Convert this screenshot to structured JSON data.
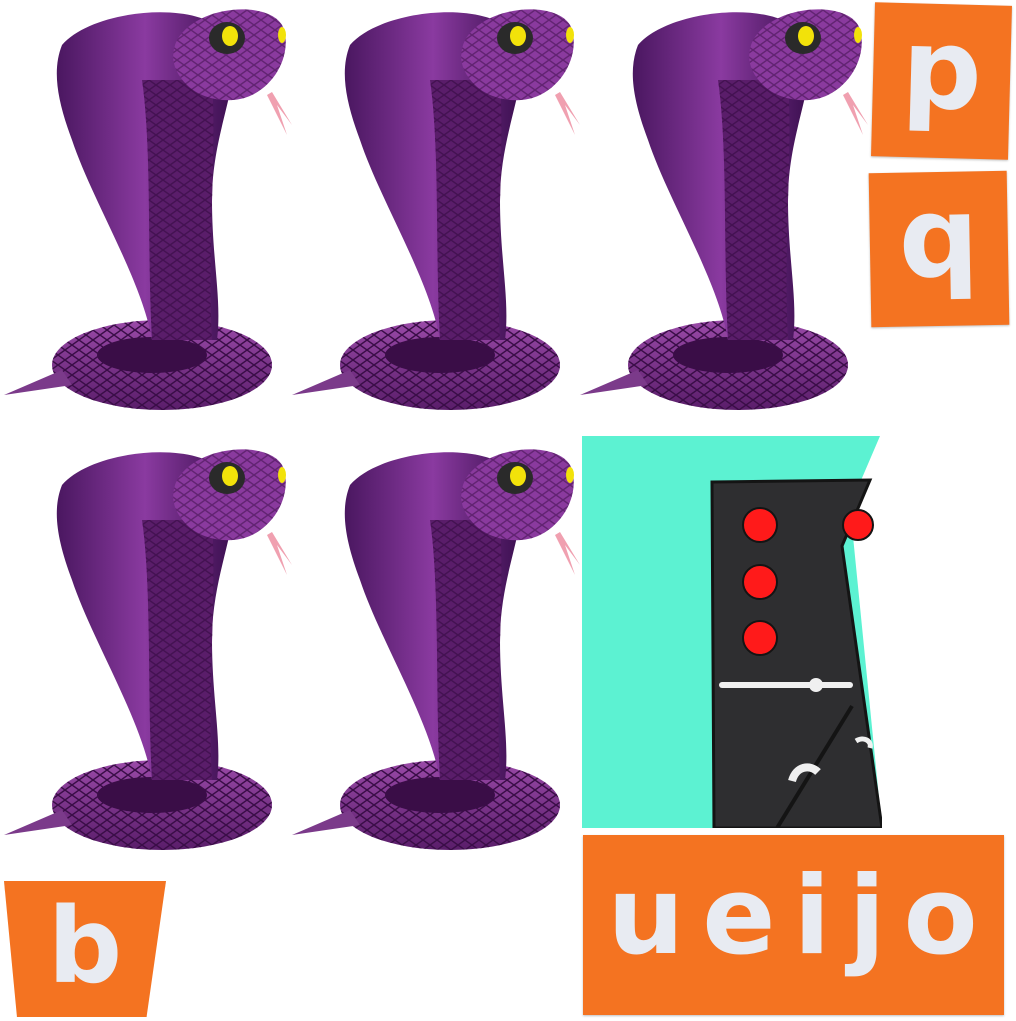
{
  "tiles": {
    "p": "p",
    "q": "q",
    "b": "b",
    "word": "ueijo"
  },
  "colors": {
    "tile_orange": "#f47321",
    "tile_text": "#e8ebf2",
    "cobra_purple": "#7b2f8c",
    "domino_bg": "#5cf2d2",
    "domino_body": "#2e2e30",
    "pip_red": "#ff1a1a"
  },
  "images": {
    "cobra_count": 5,
    "cobra_icon": "cobra-icon",
    "domino_icon": "domino-icon"
  }
}
